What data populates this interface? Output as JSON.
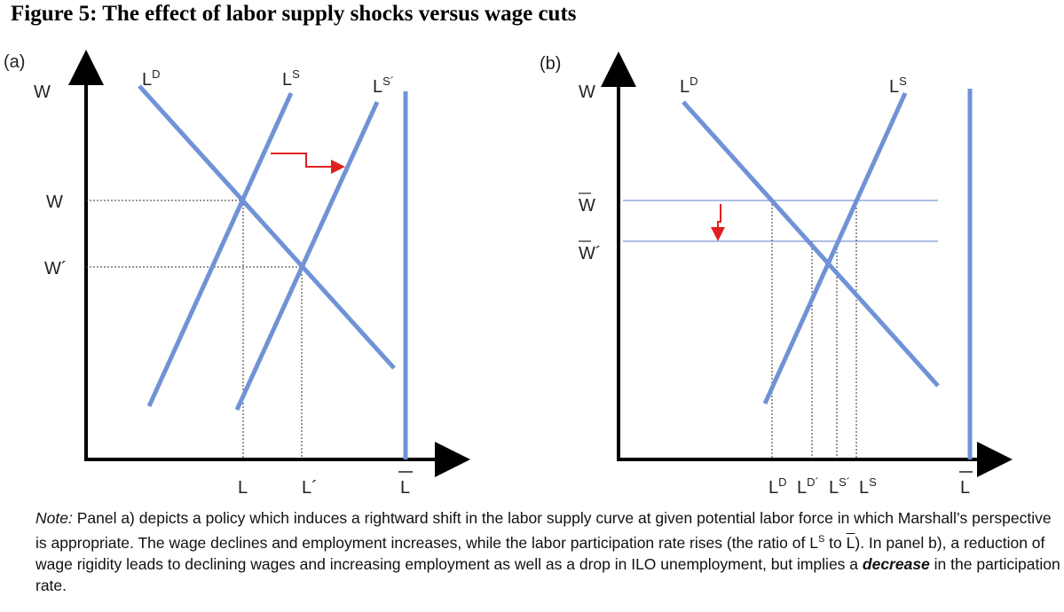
{
  "title": "Figure 5: The effect of labor supply shocks versus wage cuts",
  "panel_a": {
    "label": "(a)",
    "y_axis": "W",
    "curves": [
      {
        "base": "L",
        "sup": "D"
      },
      {
        "base": "L",
        "sup": "S"
      },
      {
        "base": "L",
        "sup": "S´"
      }
    ],
    "y_labels": [
      "W",
      "W´"
    ],
    "x_labels": [
      "L",
      "L´",
      "L"
    ]
  },
  "panel_b": {
    "label": "(b)",
    "y_axis": "W",
    "curves": [
      {
        "base": "L",
        "sup": "D"
      },
      {
        "base": "L",
        "sup": "S"
      }
    ],
    "y_labels": [
      "W",
      "W´"
    ],
    "x_labels": [
      {
        "base": "L",
        "sup": "D"
      },
      {
        "base": "L",
        "sup": "D´"
      },
      {
        "base": "L",
        "sup": "S´"
      },
      {
        "base": "L",
        "sup": "S"
      },
      "L"
    ]
  },
  "note": {
    "label": "Note:",
    "segments": [
      "Panel a) depicts a policy which induces a rightward shift in the labor supply curve at given potential labor force in which Marshall’s perspective is appropriate. The wage declines and employment increases, while the labor participation rate rises (the ratio of L",
      "S",
      " to ",
      "L",
      "). In panel b), a reduction of wage rigidity leads to declining wages and increasing employment as well as a drop in ILO unemployment, but implies a ",
      "decrease",
      " in the participation rate."
    ]
  }
}
